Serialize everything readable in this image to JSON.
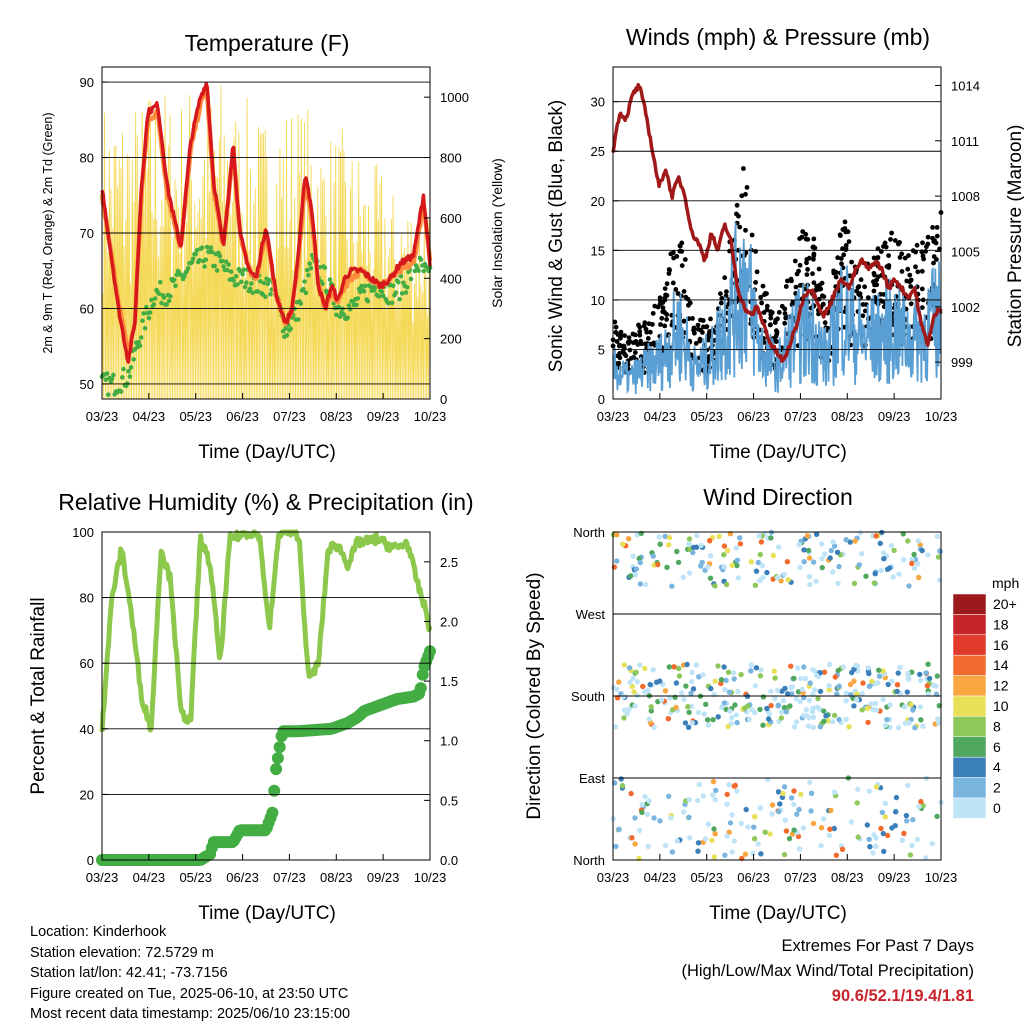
{
  "colors": {
    "temp_2m": "#d7191c",
    "temp_9m": "#fd8d3c",
    "dewpoint": "#43ad43",
    "solar": "#f5d958",
    "wind": "#5a9fd4",
    "gust": "#000000",
    "pressure": "#a01818",
    "rh": "#8cc84b",
    "rain": "#43ad43",
    "extremes": "#c8242b"
  },
  "x_ticks": [
    "03/23",
    "04/23",
    "05/23",
    "06/23",
    "07/23",
    "08/23",
    "09/23",
    "10/23"
  ],
  "x_label": "Time (Day/UTC)",
  "panels": {
    "temperature": {
      "title": "Temperature (F)",
      "ylabel_left": "2m & 9m T (Red, Orange) & 2m Td (Green)",
      "ylabel_right": "Solar Insolation (Yellow)",
      "yticks_left": [
        "50",
        "60",
        "70",
        "80",
        "90"
      ],
      "yticks_right": [
        "0",
        "200",
        "400",
        "600",
        "800",
        "1000"
      ]
    },
    "winds": {
      "title": "Winds (mph) & Pressure (mb)",
      "ylabel_left": "Sonic Wind & Gust (Blue, Black)",
      "ylabel_right": "Station Pressure (Maroon)",
      "yticks_left": [
        "0",
        "5",
        "10",
        "15",
        "20",
        "25",
        "30"
      ],
      "yticks_right": [
        "999",
        "1002",
        "1005",
        "1008",
        "1011",
        "1014"
      ]
    },
    "humidity": {
      "title": "Relative Humidity (%) & Precipitation (in)",
      "ylabel_left": "Percent & Total Rainfall",
      "yticks_left": [
        "0",
        "20",
        "40",
        "60",
        "80",
        "100"
      ],
      "yticks_right": [
        "0.0",
        "0.5",
        "1.0",
        "1.5",
        "2.0",
        "2.5"
      ]
    },
    "direction": {
      "title": "Wind Direction",
      "ylabel_left": "Direction (Colored By Speed)",
      "yticks_left": [
        "North",
        "East",
        "South",
        "West",
        "North"
      ],
      "legend_unit": "mph",
      "legend_labels": [
        "20+",
        "18",
        "16",
        "14",
        "12",
        "10",
        "8",
        "6",
        "4",
        "2",
        "0"
      ],
      "legend_colors": [
        "#9c1a1c",
        "#c8242b",
        "#e23a2c",
        "#f26a2e",
        "#f9a640",
        "#e9e05a",
        "#8ec85a",
        "#4fa85e",
        "#3a7fb8",
        "#7ab5e0",
        "#bfe4f7"
      ]
    }
  },
  "chart_data": [
    {
      "type": "line",
      "title": "Temperature (F)",
      "xlabel": "Time (Day/UTC)",
      "ylabel": "2m & 9m T (Red, Orange) & 2m Td (Green)",
      "ylabel_right": "Solar Insolation (Yellow)",
      "ylim": [
        48,
        92
      ],
      "ylim_right": [
        0,
        1100
      ],
      "x": [
        "03/23",
        "04/23",
        "05/23",
        "06/23",
        "07/23",
        "08/23",
        "09/23",
        "10/23"
      ],
      "series": [
        {
          "name": "2m T (Red)",
          "x": [
            0,
            0.05,
            0.08,
            0.1,
            0.12,
            0.14,
            0.17,
            0.2,
            0.24,
            0.27,
            0.3,
            0.32,
            0.34,
            0.37,
            0.4,
            0.42,
            0.45,
            0.47,
            0.5,
            0.53,
            0.56,
            0.58,
            0.6,
            0.62,
            0.64,
            0.66,
            0.68,
            0.7,
            0.72,
            0.74,
            0.76,
            0.79,
            0.82,
            0.85,
            0.88,
            0.91,
            0.95,
            0.98,
            1.0
          ],
          "values": [
            76,
            60,
            53,
            58,
            76,
            86,
            87,
            76,
            68,
            82,
            88,
            90,
            77,
            68,
            82,
            70,
            65,
            64,
            71,
            62,
            58,
            60,
            68,
            78,
            73,
            63,
            60,
            63,
            61,
            64,
            65,
            65,
            64,
            63,
            64,
            66,
            67,
            75,
            66
          ]
        },
        {
          "name": "9m T (Orange)",
          "x": [
            0,
            0.05,
            0.08,
            0.1,
            0.12,
            0.14,
            0.17,
            0.2,
            0.24,
            0.27,
            0.3,
            0.32,
            0.34,
            0.37,
            0.4,
            0.42,
            0.45,
            0.47,
            0.5,
            0.53,
            0.56,
            0.58,
            0.6,
            0.62,
            0.64,
            0.66,
            0.68,
            0.7,
            0.72,
            0.74,
            0.76,
            0.79,
            0.82,
            0.85,
            0.88,
            0.91,
            0.95,
            0.98,
            1.0
          ],
          "values": [
            75,
            61,
            54,
            58,
            75,
            85,
            86,
            75,
            68,
            81,
            87,
            89,
            76,
            68,
            81,
            70,
            65,
            64,
            70,
            62,
            58,
            60,
            67,
            77,
            72,
            63,
            60,
            62,
            61,
            63,
            64,
            65,
            64,
            63,
            64,
            65,
            66,
            74,
            66
          ]
        },
        {
          "name": "2m Td (Green)",
          "x": [
            0,
            0.04,
            0.08,
            0.12,
            0.16,
            0.2,
            0.24,
            0.28,
            0.32,
            0.36,
            0.4,
            0.44,
            0.48,
            0.52,
            0.56,
            0.6,
            0.64,
            0.68,
            0.72,
            0.76,
            0.8,
            0.84,
            0.88,
            0.92,
            0.96,
            1.0
          ],
          "values": [
            50,
            50,
            51,
            57,
            62,
            62,
            64,
            66,
            67,
            66,
            64,
            64,
            63,
            63,
            57,
            60,
            66,
            64,
            60,
            60,
            62,
            63,
            62,
            63,
            66,
            64
          ]
        },
        {
          "name": "Solar Insolation (Yellow)",
          "axis": "right",
          "peak_values": [
            1000,
            1000,
            1050,
            1020,
            1060,
            1080,
            1000,
            950,
            1000,
            980,
            900,
            850,
            780,
            700,
            700
          ],
          "min_value": 0
        }
      ]
    },
    {
      "type": "line",
      "title": "Winds (mph) & Pressure (mb)",
      "xlabel": "Time (Day/UTC)",
      "ylabel": "Sonic Wind & Gust (Blue, Black)",
      "ylabel_right": "Station Pressure (Maroon)",
      "ylim": [
        0,
        33.5
      ],
      "ylim_right": [
        997,
        1015
      ],
      "x": [
        "03/23",
        "04/23",
        "05/23",
        "06/23",
        "07/23",
        "08/23",
        "09/23",
        "10/23"
      ],
      "series": [
        {
          "name": "Station Pressure (Maroon)",
          "axis": "right",
          "x": [
            0,
            0.02,
            0.04,
            0.06,
            0.08,
            0.1,
            0.12,
            0.14,
            0.16,
            0.18,
            0.2,
            0.22,
            0.24,
            0.26,
            0.28,
            0.3,
            0.32,
            0.34,
            0.36,
            0.38,
            0.4,
            0.42,
            0.44,
            0.46,
            0.48,
            0.5,
            0.52,
            0.54,
            0.56,
            0.58,
            0.6,
            0.62,
            0.64,
            0.66,
            0.68,
            0.7,
            0.72,
            0.74,
            0.76,
            0.78,
            0.8,
            0.82,
            0.84,
            0.86,
            0.88,
            0.9,
            0.92,
            0.94,
            0.96,
            0.98,
            1.0
          ],
          "values": [
            1010.5,
            1012.5,
            1012.2,
            1013.5,
            1014,
            1012.5,
            1010.5,
            1008.5,
            1009.5,
            1008,
            1009,
            1008,
            1006,
            1005.5,
            1004.5,
            1006,
            1005,
            1006.5,
            1005.5,
            1003,
            1002,
            1001.5,
            1002,
            1001,
            1000,
            999.5,
            999,
            1000,
            1001,
            1002.5,
            1003,
            1002.5,
            1001.5,
            1002,
            1003,
            1003.5,
            1003,
            1004,
            1004.5,
            1004,
            1004.5,
            1004,
            1003,
            1003.5,
            1003,
            1002.5,
            1003,
            1001,
            1000,
            1001.5,
            1002
          ]
        },
        {
          "name": "Sonic Wind (Blue)",
          "x": [
            0,
            0.05,
            0.1,
            0.15,
            0.2,
            0.25,
            0.3,
            0.35,
            0.4,
            0.45,
            0.5,
            0.55,
            0.6,
            0.65,
            0.7,
            0.75,
            0.8,
            0.85,
            0.9,
            0.95,
            1.0
          ],
          "values": [
            3,
            2,
            3,
            4,
            7,
            3,
            4,
            8,
            12,
            5,
            3,
            6,
            7,
            4,
            9,
            6,
            6,
            7,
            6,
            7,
            8
          ]
        },
        {
          "name": "Gust (Black)",
          "x": [
            0,
            0.05,
            0.1,
            0.15,
            0.2,
            0.25,
            0.3,
            0.35,
            0.4,
            0.45,
            0.5,
            0.55,
            0.6,
            0.65,
            0.7,
            0.75,
            0.8,
            0.85,
            0.9,
            0.95,
            1.0
          ],
          "values": [
            6,
            5,
            6,
            8,
            14,
            6,
            6,
            12,
            18,
            9,
            6,
            11,
            14,
            7,
            14,
            10,
            11,
            13,
            11,
            12,
            14
          ]
        }
      ]
    },
    {
      "type": "line",
      "title": "Relative Humidity (%) & Precipitation (in)",
      "xlabel": "Time (Day/UTC)",
      "ylabel": "Percent & Total Rainfall",
      "ylim": [
        0,
        100
      ],
      "ylim_right": [
        0,
        2.75
      ],
      "x": [
        "03/23",
        "04/23",
        "05/23",
        "06/23",
        "07/23",
        "08/23",
        "09/23",
        "10/23"
      ],
      "series": [
        {
          "name": "Relative Humidity",
          "x": [
            0,
            0.03,
            0.06,
            0.09,
            0.12,
            0.15,
            0.18,
            0.21,
            0.24,
            0.27,
            0.3,
            0.33,
            0.36,
            0.39,
            0.42,
            0.45,
            0.48,
            0.51,
            0.54,
            0.57,
            0.6,
            0.63,
            0.66,
            0.69,
            0.72,
            0.75,
            0.78,
            0.81,
            0.84,
            0.87,
            0.9,
            0.93,
            0.96,
            0.99,
            1.0
          ],
          "values": [
            40,
            80,
            95,
            75,
            50,
            40,
            95,
            85,
            45,
            42,
            98,
            90,
            60,
            98,
            99,
            100,
            99,
            70,
            100,
            100,
            99,
            55,
            60,
            95,
            96,
            90,
            97,
            97,
            98,
            96,
            95,
            97,
            85,
            75,
            70
          ]
        },
        {
          "name": "Total Rainfall",
          "axis": "right",
          "x": [
            0,
            0.1,
            0.2,
            0.3,
            0.33,
            0.34,
            0.4,
            0.42,
            0.5,
            0.52,
            0.53,
            0.55,
            0.6,
            0.7,
            0.72,
            0.75,
            0.78,
            0.8,
            0.85,
            0.9,
            0.95,
            0.97,
            0.98,
            1.0
          ],
          "values": [
            0,
            0,
            0,
            0,
            0.05,
            0.15,
            0.15,
            0.25,
            0.25,
            0.4,
            0.75,
            1.08,
            1.08,
            1.1,
            1.12,
            1.15,
            1.2,
            1.25,
            1.3,
            1.35,
            1.37,
            1.4,
            1.6,
            1.75
          ]
        }
      ]
    },
    {
      "type": "scatter",
      "title": "Wind Direction",
      "xlabel": "Time (Day/UTC)",
      "ylabel": "Direction (Colored By Speed)",
      "y_categories": [
        "North",
        "East",
        "South",
        "West",
        "North"
      ],
      "x": [
        "03/23",
        "04/23",
        "05/23",
        "06/23",
        "07/23",
        "08/23",
        "09/23",
        "10/23"
      ],
      "color_scale": {
        "unit": "mph",
        "labels": [
          "20+",
          "18",
          "16",
          "14",
          "12",
          "10",
          "8",
          "6",
          "4",
          "2",
          "0"
        ]
      }
    }
  ],
  "info": {
    "location": "Location: Kinderhook",
    "elevation": "Station elevation: 72.5729 m",
    "latlon": "Station lat/lon: 42.41; -73.7156",
    "created": "Figure created on Tue, 2025-06-10, at 23:50 UTC",
    "recent": "Most recent data timestamp: 2025/06/10 23:15:00"
  },
  "extremes": {
    "title": "Extremes For Past 7 Days",
    "subtitle": "(High/Low/Max Wind/Total Precipitation)",
    "values": "90.6/52.1/19.4/1.81"
  }
}
